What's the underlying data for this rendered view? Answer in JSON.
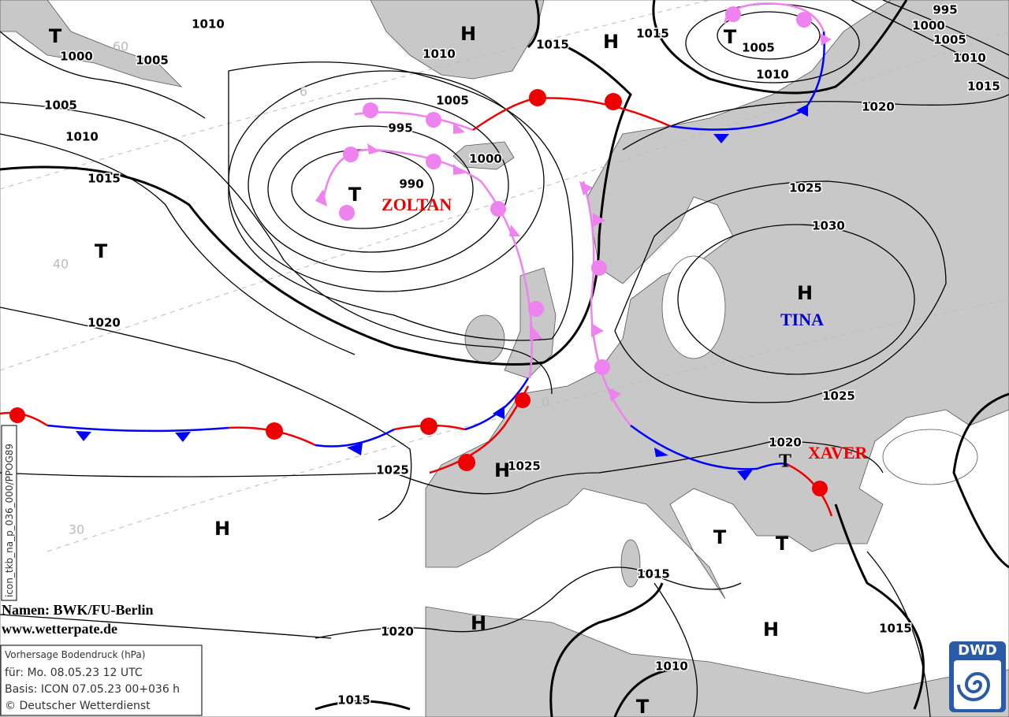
{
  "isobar_labels": [
    1010,
    1000,
    1005,
    1005,
    1010,
    1015,
    1010,
    1005,
    995,
    1000,
    990,
    1015,
    1015,
    1005,
    1010,
    995,
    1000,
    1005,
    1010,
    1015,
    1020,
    1025,
    1030,
    1020,
    1025,
    1020,
    1025,
    1025,
    1015,
    1015,
    1020,
    1010,
    1015
  ],
  "pressure_centers": [
    "T",
    "H",
    "H",
    "T",
    "T",
    "T",
    "H",
    "H",
    "H",
    "T",
    "T",
    "H",
    "H",
    "T"
  ],
  "front_low": "T",
  "system_names": [
    "ZOLTAN",
    "TINA",
    "XAVER"
  ],
  "latitude_labels": [
    60,
    6,
    40,
    30,
    0
  ],
  "credits": {
    "names": "Namen: BWK/FU-Berlin",
    "website": "www.wetterpate.de"
  },
  "info_box": [
    "Vorhersage Bodendruck (hPa)",
    "für:  Mo. 08.05.23  12 UTC",
    "Basis: ICON  07.05.23 00+036 h",
    "© Deutscher Wetterdienst"
  ],
  "run_id": "icon_tkb_na_p_036_000/PPOG89",
  "logo": "DWD"
}
